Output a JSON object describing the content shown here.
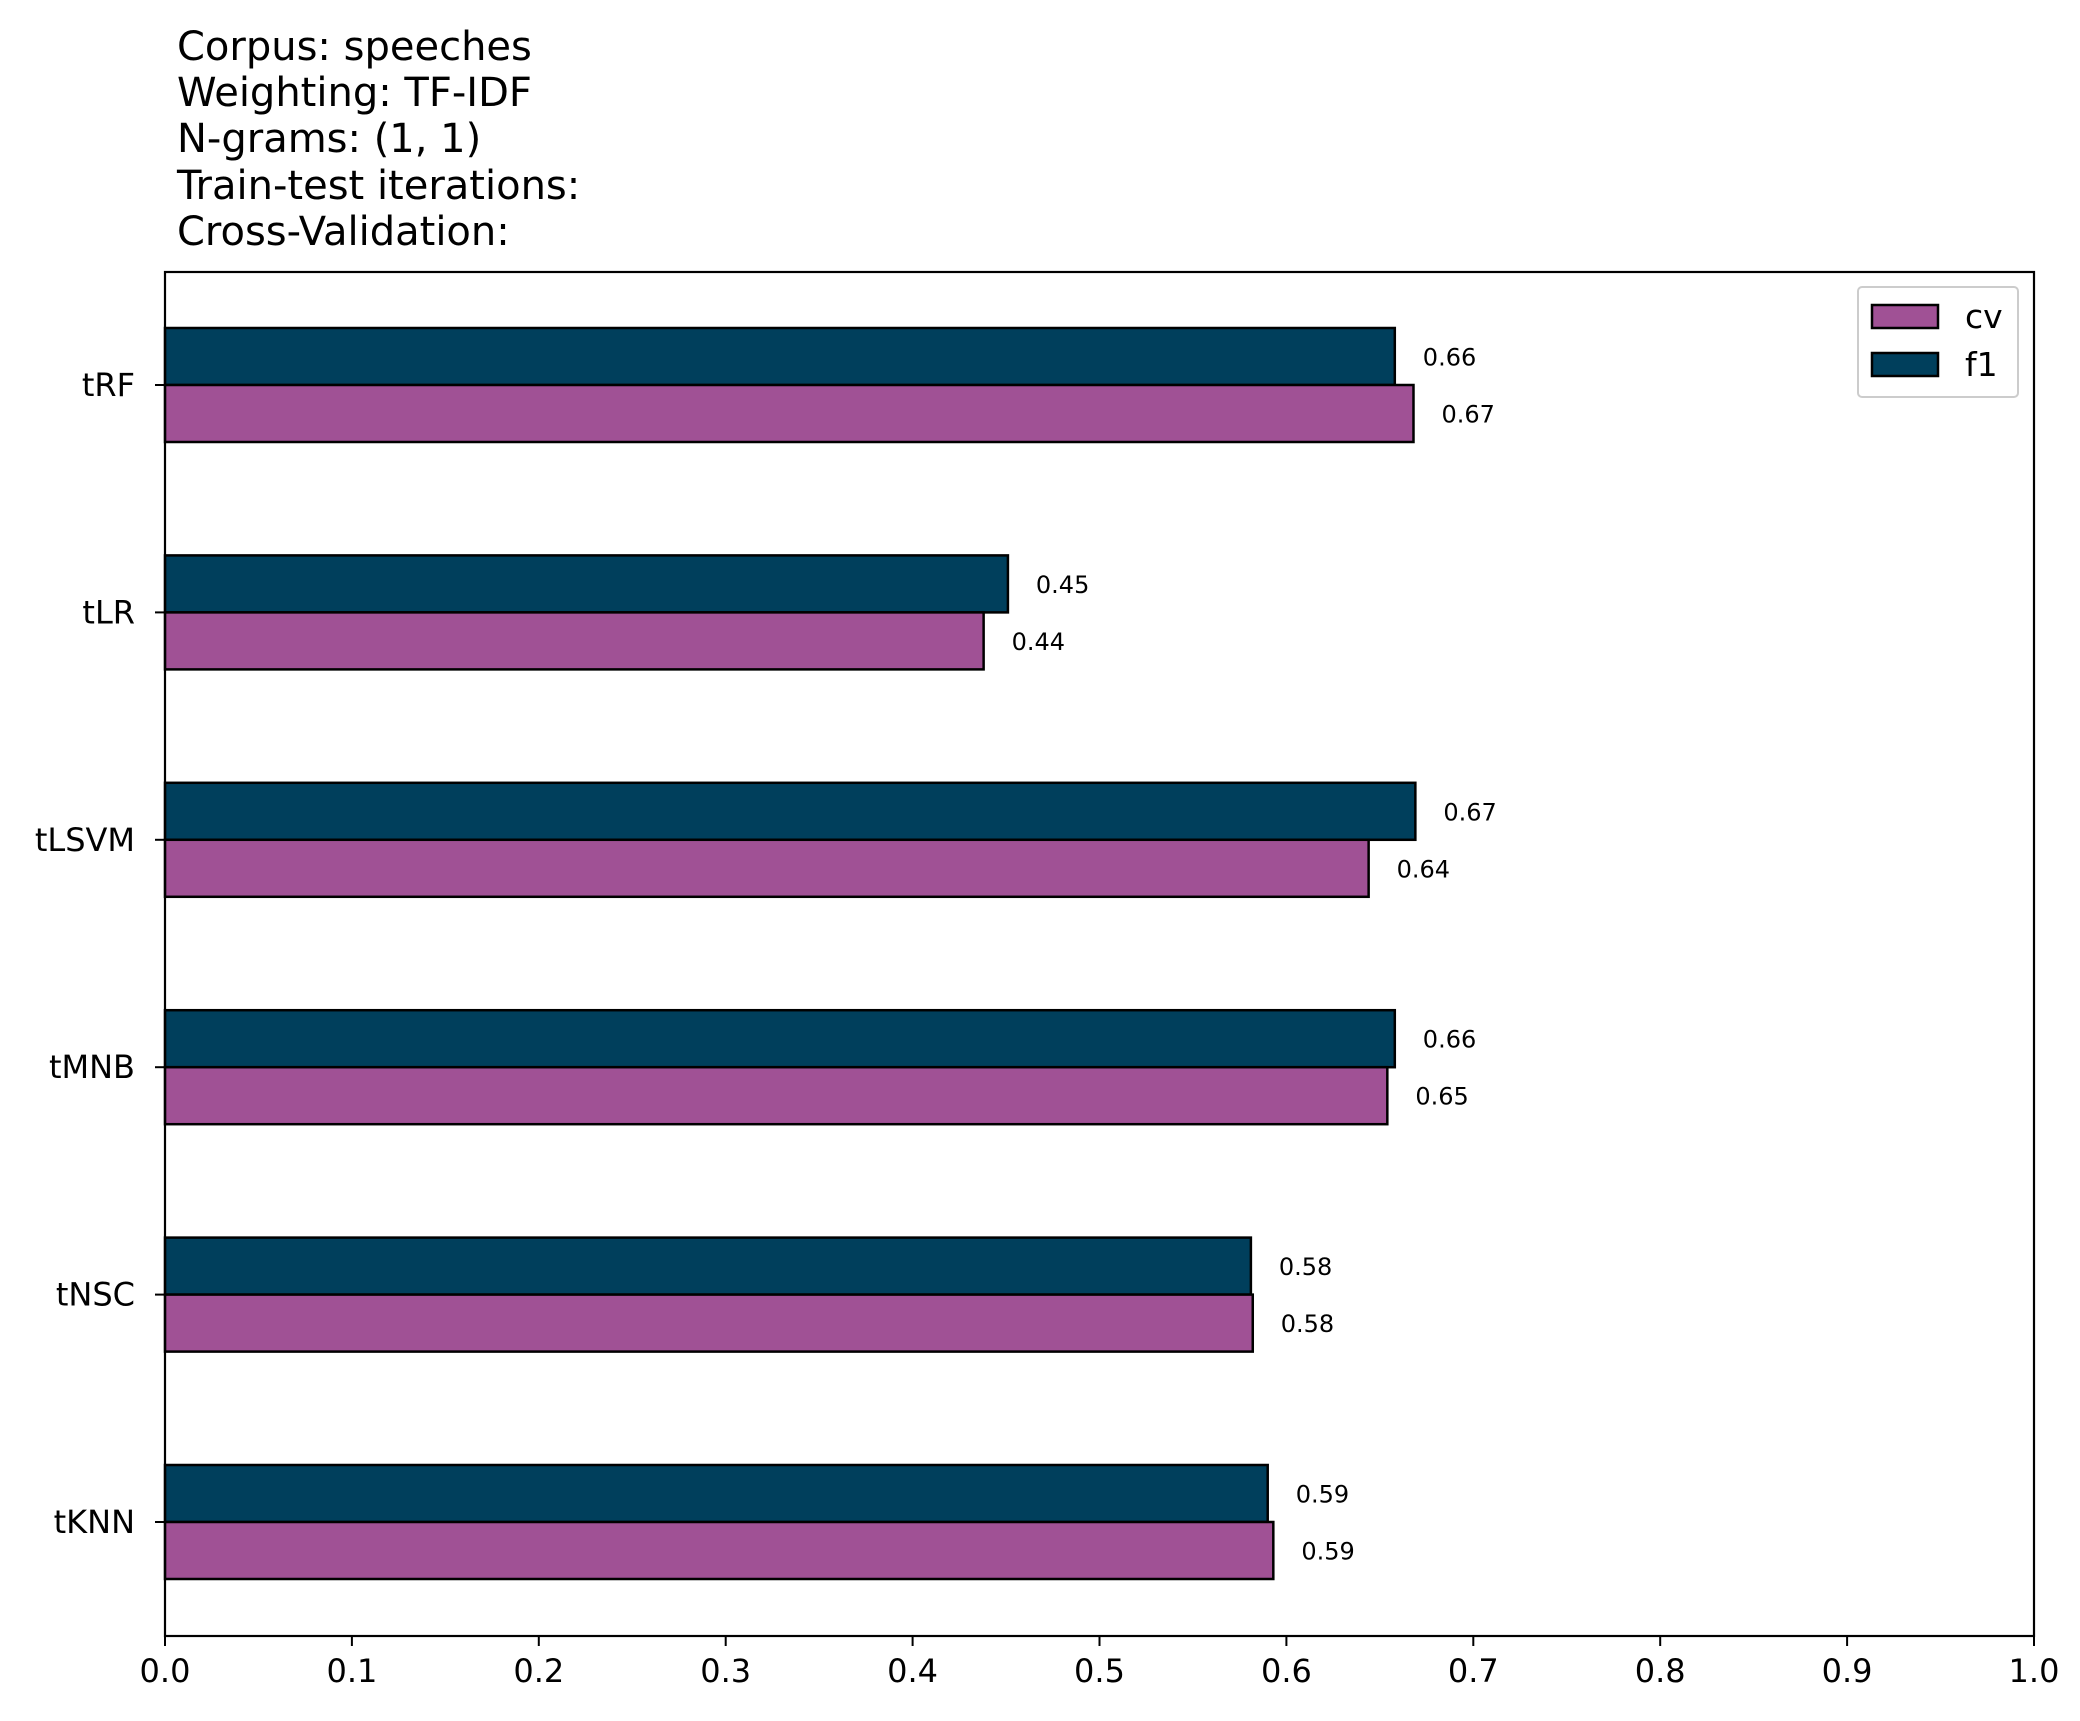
{
  "chart_data": {
    "type": "bar",
    "orientation": "horizontal",
    "title_lines": [
      "Corpus: speeches",
      "Weighting: TF-IDF",
      "N-grams: (1, 1)",
      "Train-test iterations:",
      "Cross-Validation:"
    ],
    "categories": [
      "tRF",
      "tLR",
      "tLSVM",
      "tMNB",
      "tNSC",
      "tKNN"
    ],
    "series": [
      {
        "name": "cv",
        "color": "#a05195",
        "values": [
          0.668,
          0.438,
          0.644,
          0.654,
          0.582,
          0.593
        ],
        "labels": [
          "0.67",
          "0.44",
          "0.64",
          "0.65",
          "0.58",
          "0.59"
        ]
      },
      {
        "name": "f1",
        "color": "#003f5c",
        "values": [
          0.658,
          0.451,
          0.669,
          0.658,
          0.581,
          0.59
        ],
        "labels": [
          "0.66",
          "0.45",
          "0.67",
          "0.66",
          "0.58",
          "0.59"
        ]
      }
    ],
    "xlim": [
      0.0,
      1.0
    ],
    "xticks": [
      "0.0",
      "0.1",
      "0.2",
      "0.3",
      "0.4",
      "0.5",
      "0.6",
      "0.7",
      "0.8",
      "0.9",
      "1.0"
    ],
    "xlabel": "",
    "ylabel": "",
    "grid": false,
    "legend_position": "top-right"
  }
}
